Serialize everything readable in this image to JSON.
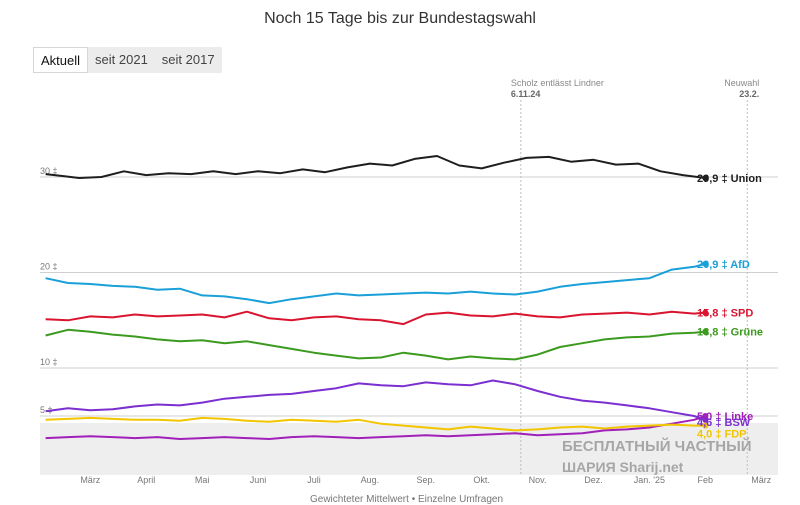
{
  "title": "Noch 15 Tage bis zur Bundestagswahl",
  "tabs": [
    "Aktuell",
    "seit 2021",
    "seit 2017"
  ],
  "events": [
    {
      "label": "Scholz entlässt Lindner",
      "date": "6.11.24"
    },
    {
      "label": "Neuwahl",
      "date": "23.2."
    }
  ],
  "watermark": {
    "line1": "БЕСПЛАТНЫЙ ЧАСТНЫЙ",
    "line2": "ШАРИЯ",
    "line3": "Sharij.net"
  },
  "legend_text": "Gewichteter Mittelwert   •  Einzelne Umfragen",
  "chart_data": {
    "type": "line",
    "title": "Noch 15 Tage bis zur Bundestagswahl",
    "xlabel": "",
    "ylabel": "",
    "ylim": [
      0,
      33
    ],
    "grid": true,
    "y_ticks": [
      {
        "value": 30,
        "label": "30 ‡"
      },
      {
        "value": 20,
        "label": "20 ‡"
      },
      {
        "value": 10,
        "label": "10 ‡"
      },
      {
        "value": 5,
        "label": "5 ‡"
      }
    ],
    "x_ticks": [
      "März",
      "April",
      "Mai",
      "Juni",
      "Juli",
      "Aug.",
      "Sep.",
      "Okt.",
      "Nov.",
      "Dez.",
      "Jan. '25",
      "Feb",
      "März"
    ],
    "x_tick_months": [
      0,
      1,
      2,
      3,
      4,
      5,
      6,
      7,
      8,
      9,
      10,
      11,
      12
    ],
    "x_range_months": [
      -0.9,
      12.3
    ],
    "event_months": [
      7.7,
      11.75
    ],
    "series": [
      {
        "name": "Union",
        "color": "#1e1e1e",
        "end_label": "29,9 ‡ Union",
        "x": [
          -0.8,
          -0.5,
          -0.2,
          0.2,
          0.6,
          1.0,
          1.4,
          1.8,
          2.2,
          2.6,
          3.0,
          3.4,
          3.8,
          4.2,
          4.6,
          5.0,
          5.4,
          5.8,
          6.2,
          6.6,
          7.0,
          7.4,
          7.8,
          8.2,
          8.6,
          9.0,
          9.4,
          9.8,
          10.2,
          10.6,
          11.0
        ],
        "values": [
          30.3,
          30.1,
          29.9,
          30.0,
          30.6,
          30.2,
          30.4,
          30.3,
          30.6,
          30.3,
          30.6,
          30.4,
          30.8,
          30.5,
          31.0,
          31.4,
          31.2,
          31.9,
          32.2,
          31.2,
          30.9,
          31.5,
          32.0,
          32.1,
          31.6,
          31.8,
          31.3,
          31.4,
          30.6,
          30.2,
          29.9
        ]
      },
      {
        "name": "AfD",
        "color": "#1aa0d8",
        "end_label": "20,9 ‡ AfD",
        "x": [
          -0.8,
          -0.4,
          0.0,
          0.4,
          0.8,
          1.2,
          1.6,
          2.0,
          2.4,
          2.8,
          3.2,
          3.6,
          4.0,
          4.4,
          4.8,
          5.2,
          5.6,
          6.0,
          6.4,
          6.8,
          7.2,
          7.6,
          8.0,
          8.4,
          8.8,
          9.2,
          9.6,
          10.0,
          10.4,
          10.8,
          11.0
        ],
        "values": [
          19.4,
          18.9,
          18.8,
          18.6,
          18.5,
          18.2,
          18.3,
          17.6,
          17.5,
          17.2,
          16.8,
          17.2,
          17.5,
          17.8,
          17.6,
          17.7,
          17.8,
          17.9,
          17.8,
          18.0,
          17.8,
          17.7,
          18.0,
          18.5,
          18.8,
          19.0,
          19.2,
          19.4,
          20.3,
          20.6,
          20.9
        ]
      },
      {
        "name": "SPD",
        "color": "#d9142f",
        "end_label": "15,8 ‡ SPD",
        "x": [
          -0.8,
          -0.4,
          0.0,
          0.4,
          0.8,
          1.2,
          1.6,
          2.0,
          2.4,
          2.8,
          3.2,
          3.6,
          4.0,
          4.4,
          4.8,
          5.2,
          5.6,
          6.0,
          6.4,
          6.8,
          7.2,
          7.6,
          8.0,
          8.4,
          8.8,
          9.2,
          9.6,
          10.0,
          10.4,
          10.8,
          11.0
        ],
        "values": [
          15.1,
          15.0,
          15.4,
          15.3,
          15.6,
          15.4,
          15.5,
          15.6,
          15.3,
          15.9,
          15.2,
          15.0,
          15.3,
          15.4,
          15.1,
          15.0,
          14.6,
          15.6,
          15.8,
          15.5,
          15.4,
          15.7,
          15.4,
          15.3,
          15.6,
          15.7,
          15.8,
          15.6,
          15.9,
          15.7,
          15.8
        ]
      },
      {
        "name": "Grüne",
        "color": "#3c9a1f",
        "end_label": "13,8 ‡ Grüne",
        "x": [
          -0.8,
          -0.4,
          0.0,
          0.4,
          0.8,
          1.2,
          1.6,
          2.0,
          2.4,
          2.8,
          3.2,
          3.6,
          4.0,
          4.4,
          4.8,
          5.2,
          5.6,
          6.0,
          6.4,
          6.8,
          7.2,
          7.6,
          8.0,
          8.4,
          8.8,
          9.2,
          9.6,
          10.0,
          10.4,
          10.8,
          11.0
        ],
        "values": [
          13.4,
          14.0,
          13.8,
          13.5,
          13.3,
          13.0,
          12.8,
          12.9,
          12.6,
          12.8,
          12.4,
          12.0,
          11.6,
          11.3,
          11.0,
          11.1,
          11.6,
          11.3,
          10.9,
          11.2,
          11.0,
          10.9,
          11.4,
          12.2,
          12.6,
          13.0,
          13.2,
          13.3,
          13.6,
          13.7,
          13.8
        ]
      },
      {
        "name": "Linke",
        "color": "#a020b8",
        "end_label": "5,0 ‡ Linke",
        "x": [
          -0.8,
          -0.4,
          0.0,
          0.4,
          0.8,
          1.2,
          1.6,
          2.0,
          2.4,
          2.8,
          3.2,
          3.6,
          4.0,
          4.4,
          4.8,
          5.2,
          5.6,
          6.0,
          6.4,
          6.8,
          7.2,
          7.6,
          8.0,
          8.4,
          8.8,
          9.2,
          9.6,
          10.0,
          10.4,
          10.8,
          11.0
        ],
        "values": [
          2.7,
          2.8,
          2.9,
          2.8,
          2.7,
          2.8,
          2.6,
          2.7,
          2.8,
          2.7,
          2.6,
          2.8,
          2.9,
          2.8,
          2.7,
          2.8,
          2.9,
          3.0,
          2.9,
          3.0,
          3.1,
          3.2,
          3.0,
          3.1,
          3.2,
          3.5,
          3.6,
          3.8,
          4.2,
          4.6,
          5.0
        ]
      },
      {
        "name": "BSW",
        "color": "#7b2fd0",
        "end_label": "4,6 ‡ BSW",
        "x": [
          -0.8,
          -0.4,
          0.0,
          0.4,
          0.8,
          1.2,
          1.6,
          2.0,
          2.4,
          2.8,
          3.2,
          3.6,
          4.0,
          4.4,
          4.8,
          5.2,
          5.6,
          6.0,
          6.4,
          6.8,
          7.2,
          7.6,
          8.0,
          8.4,
          8.8,
          9.2,
          9.6,
          10.0,
          10.4,
          10.8,
          11.0
        ],
        "values": [
          5.5,
          5.8,
          5.6,
          5.7,
          6.0,
          6.2,
          6.1,
          6.4,
          6.8,
          7.0,
          7.2,
          7.3,
          7.6,
          7.9,
          8.4,
          8.2,
          8.1,
          8.5,
          8.3,
          8.2,
          8.7,
          8.3,
          7.6,
          7.0,
          6.6,
          6.4,
          6.1,
          5.8,
          5.4,
          5.0,
          4.6
        ]
      },
      {
        "name": "FDP",
        "color": "#f2c500",
        "end_label": "4,0 ‡ FDP",
        "x": [
          -0.8,
          -0.4,
          0.0,
          0.4,
          0.8,
          1.2,
          1.6,
          2.0,
          2.4,
          2.8,
          3.2,
          3.6,
          4.0,
          4.4,
          4.8,
          5.2,
          5.6,
          6.0,
          6.4,
          6.8,
          7.2,
          7.6,
          8.0,
          8.4,
          8.8,
          9.2,
          9.6,
          10.0,
          10.4,
          10.8,
          11.0
        ],
        "values": [
          4.6,
          4.7,
          4.8,
          4.7,
          4.6,
          4.6,
          4.5,
          4.8,
          4.7,
          4.5,
          4.4,
          4.6,
          4.5,
          4.4,
          4.6,
          4.2,
          4.0,
          3.8,
          3.6,
          3.9,
          3.7,
          3.5,
          3.6,
          3.8,
          3.9,
          3.7,
          3.9,
          4.0,
          4.1,
          4.0,
          4.0
        ]
      }
    ],
    "end_label_values": [
      29.9,
      20.9,
      15.8,
      13.8,
      5.0,
      4.6,
      4.0
    ]
  }
}
